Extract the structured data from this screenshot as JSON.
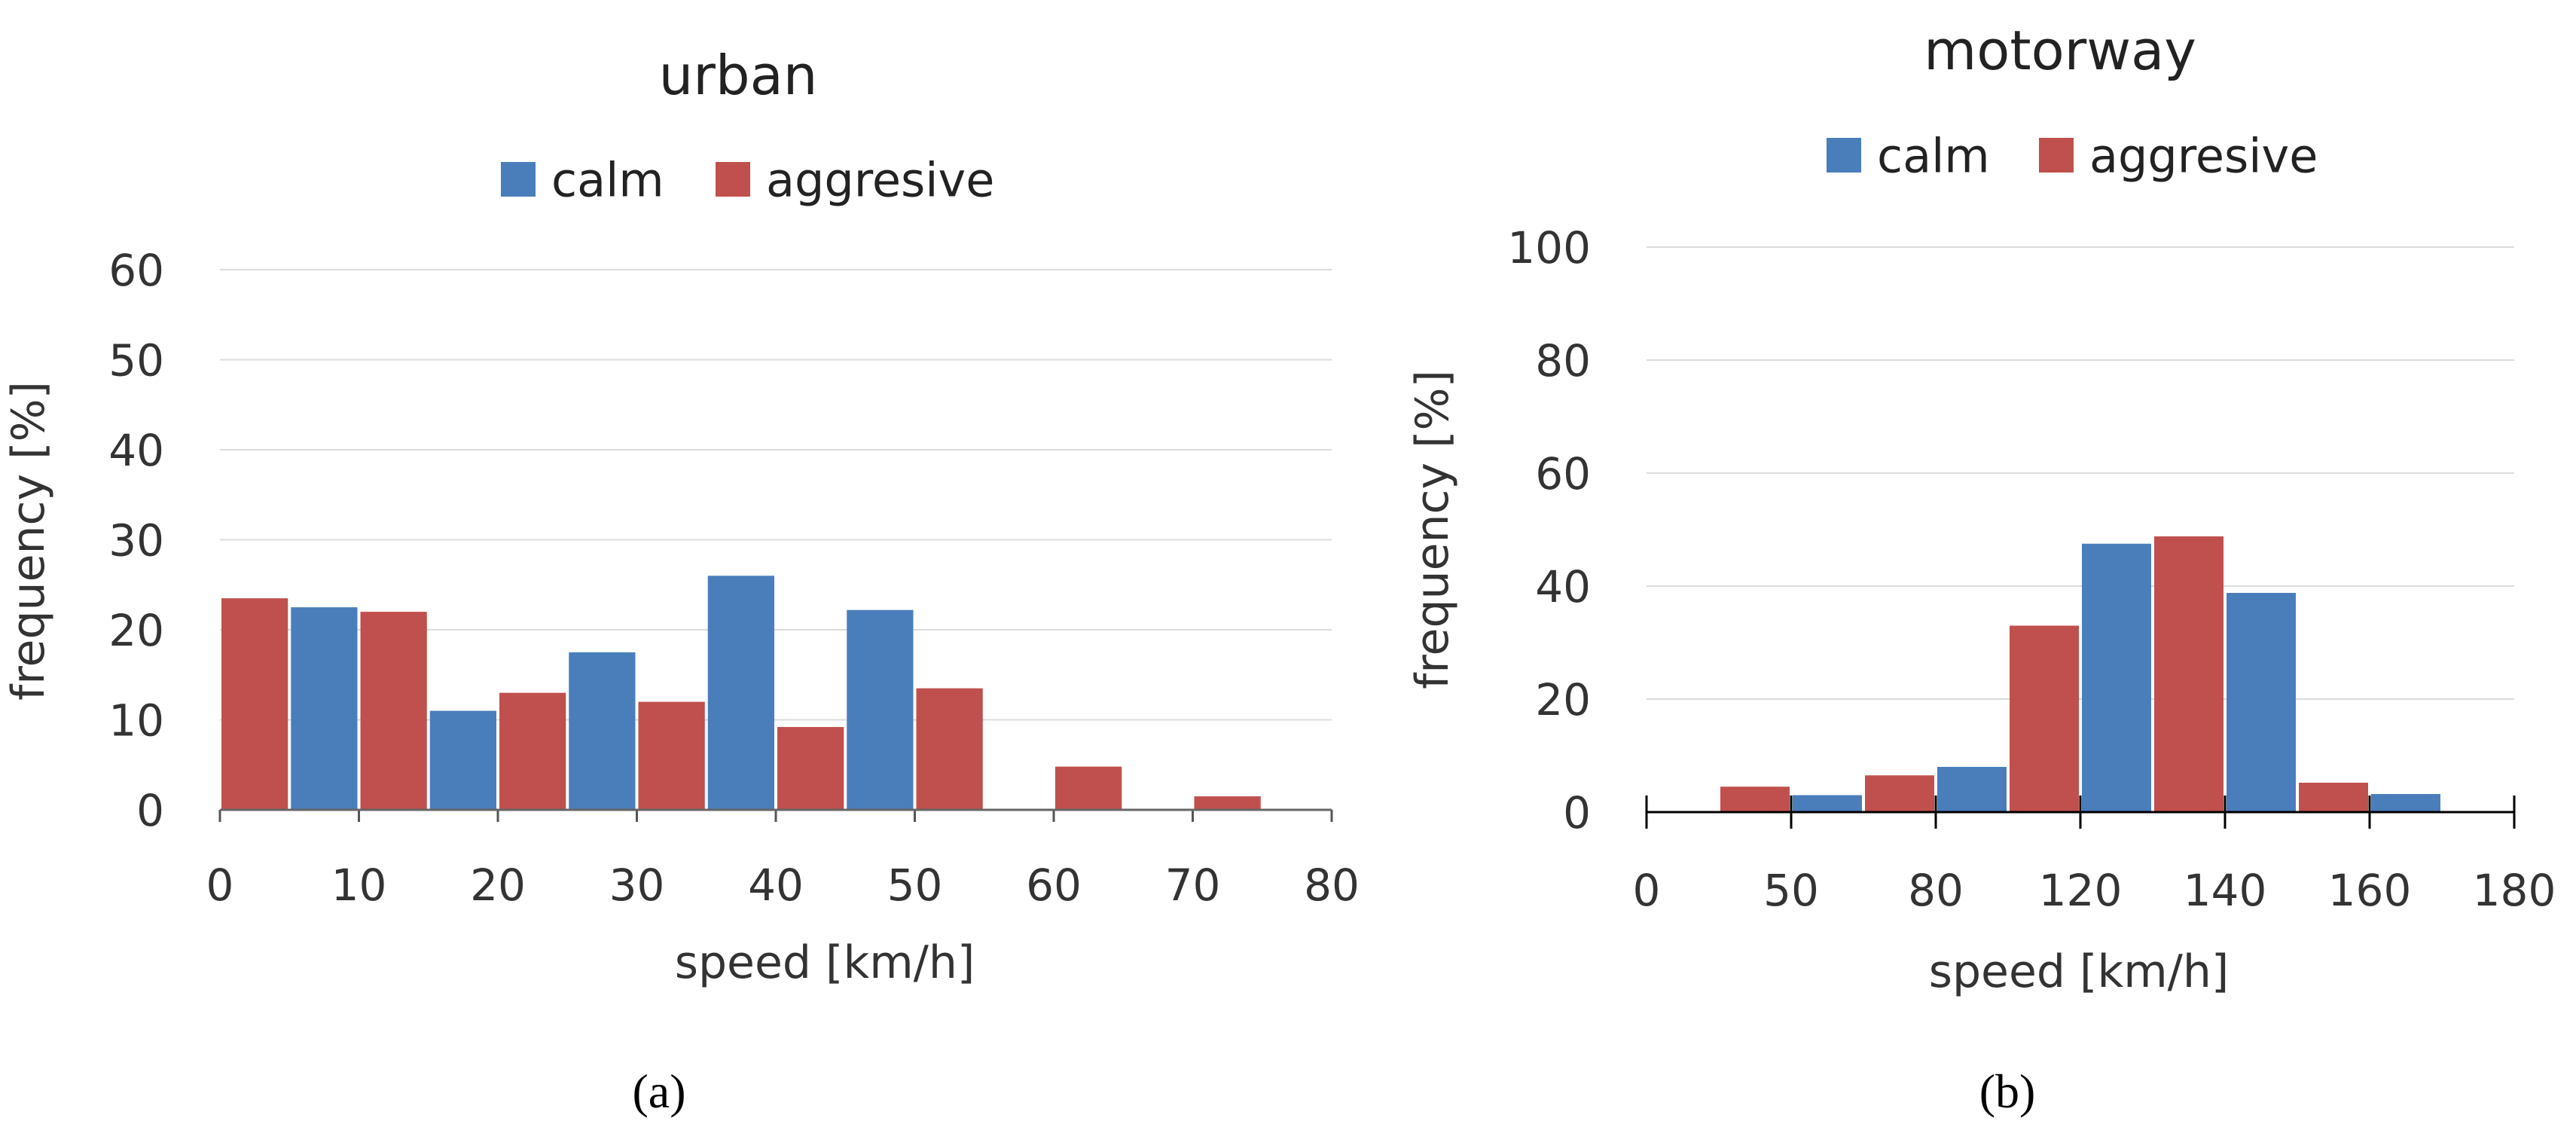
{
  "chart_data": [
    {
      "type": "bar",
      "panel_id": "a",
      "title": "urban",
      "caption": "(a)",
      "xlabel": "speed [km/h]",
      "ylabel": "frequency [%]",
      "ylim": [
        0,
        60
      ],
      "y_ticks": [
        "0",
        "10",
        "20",
        "30",
        "40",
        "50",
        "60"
      ],
      "x_ticks": [
        "0",
        "10",
        "20",
        "30",
        "40",
        "50",
        "60",
        "70",
        "80"
      ],
      "grid": true,
      "legend": {
        "position": "top-center",
        "items": [
          {
            "name": "calm",
            "color": "#4a7ebb"
          },
          {
            "name": "aggresive",
            "color": "#c0504d"
          }
        ]
      },
      "series": [
        {
          "name": "aggresive",
          "color": "#c0504d",
          "bins": [
            [
              0,
              5
            ],
            [
              10,
              15
            ],
            [
              20,
              25
            ],
            [
              30,
              35
            ],
            [
              40,
              45
            ],
            [
              50,
              55
            ],
            [
              60,
              65
            ],
            [
              70,
              75
            ]
          ],
          "values": [
            23.5,
            22,
            13,
            12,
            9.2,
            13.5,
            4.8,
            1.5
          ]
        },
        {
          "name": "calm",
          "color": "#4a7ebb",
          "bins": [
            [
              5,
              10
            ],
            [
              15,
              20
            ],
            [
              25,
              30
            ],
            [
              35,
              40
            ],
            [
              45,
              50
            ],
            [
              55,
              60
            ],
            [
              65,
              70
            ],
            [
              75,
              80
            ]
          ],
          "values": [
            22.5,
            11,
            17.5,
            26,
            22.2,
            0,
            0,
            0
          ]
        }
      ]
    },
    {
      "type": "bar",
      "panel_id": "b",
      "title": "motorway",
      "caption": "(b)",
      "xlabel": "speed [km/h]",
      "ylabel": "frequency [%]",
      "ylim": [
        0,
        100
      ],
      "y_ticks": [
        "0",
        "20",
        "40",
        "60",
        "80",
        "100"
      ],
      "x_ticks": [
        "0",
        "50",
        "80",
        "120",
        "140",
        "160",
        "180"
      ],
      "grid": true,
      "legend": {
        "position": "top-center",
        "items": [
          {
            "name": "calm",
            "color": "#4a7ebb"
          },
          {
            "name": "aggresive",
            "color": "#c0504d"
          }
        ]
      },
      "series": [
        {
          "name": "aggresive",
          "color": "#c0504d",
          "bin_positions": [
            1,
            3,
            5,
            7,
            9
          ],
          "values": [
            4.5,
            6.5,
            33,
            48.8,
            5.2
          ]
        },
        {
          "name": "calm",
          "color": "#4a7ebb",
          "bin_positions": [
            2,
            4,
            6,
            8,
            10
          ],
          "values": [
            3,
            8,
            47.5,
            38.8,
            3.2
          ]
        }
      ]
    }
  ]
}
